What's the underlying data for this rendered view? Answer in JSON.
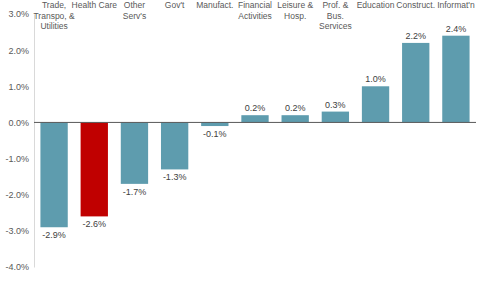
{
  "chart_data": {
    "type": "bar",
    "categories": [
      "Trade, Transpo, & Utilities",
      "Health Care",
      "Other Serv's",
      "Gov't",
      "Manufact.",
      "Financial Activities",
      "Leisure & Hosp.",
      "Prof. & Bus. Services",
      "Education",
      "Construct.",
      "Informat'n"
    ],
    "values": [
      -2.9,
      -2.6,
      -1.7,
      -1.3,
      -0.1,
      0.2,
      0.2,
      0.3,
      1.0,
      2.2,
      2.4
    ],
    "value_labels": [
      "-2.9%",
      "-2.6%",
      "-1.7%",
      "-1.3%",
      "-0.1%",
      "0.2%",
      "0.2%",
      "0.3%",
      "1.0%",
      "2.2%",
      "2.4%"
    ],
    "colors": [
      "#5e9cae",
      "#c00000",
      "#5e9cae",
      "#5e9cae",
      "#5e9cae",
      "#5e9cae",
      "#5e9cae",
      "#5e9cae",
      "#5e9cae",
      "#5e9cae",
      "#5e9cae"
    ],
    "ylim": [
      -4,
      3
    ],
    "yticks": [
      {
        "value": -4,
        "label": "-4.0%"
      },
      {
        "value": -3,
        "label": "-3.0%"
      },
      {
        "value": -2,
        "label": "-2.0%"
      },
      {
        "value": -1,
        "label": "-1.0%"
      },
      {
        "value": 0,
        "label": "0.0%"
      },
      {
        "value": 1,
        "label": "1.0%"
      },
      {
        "value": 2,
        "label": "2.0%"
      },
      {
        "value": 3,
        "label": "3.0%"
      }
    ],
    "grid": false,
    "data_labels": true
  }
}
